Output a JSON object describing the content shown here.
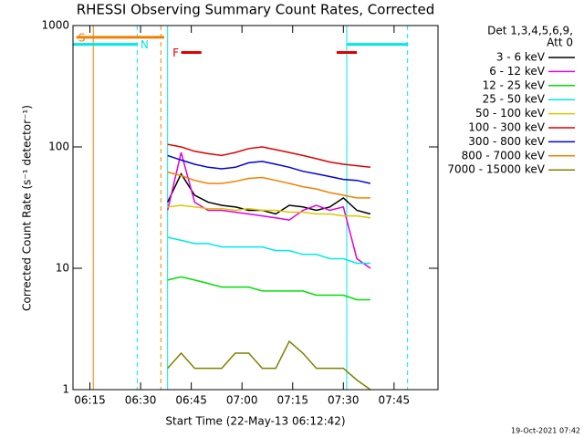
{
  "chart_data": {
    "type": "line",
    "title": "RHESSI Observing Summary Count Rates, Corrected",
    "x_label": "Start Time (22-May-13 06:12:42)",
    "y_label": "Corrected Count Rate (s⁻¹ detector⁻¹)",
    "footer": "19-Oct-2021 07:42",
    "legend_title": [
      "Det 1,3,4,5,6,9,",
      "Att 0"
    ],
    "log_y": true,
    "xlim": [
      "06:10",
      "07:58"
    ],
    "xticks": [
      "06:15",
      "06:30",
      "06:45",
      "07:00",
      "07:15",
      "07:30",
      "07:45"
    ],
    "ylim": [
      1,
      1000
    ],
    "yticks": [
      1,
      10,
      100,
      1000
    ],
    "x": [
      "06:38",
      "06:42",
      "06:46",
      "06:50",
      "06:54",
      "06:58",
      "07:02",
      "07:06",
      "07:10",
      "07:14",
      "07:18",
      "07:22",
      "07:26",
      "07:30",
      "07:34",
      "07:38"
    ],
    "series": [
      {
        "name": "3 - 6 keV",
        "color": "#000000",
        "values": [
          35,
          60,
          40,
          35,
          33,
          32,
          30,
          30,
          28,
          33,
          32,
          30,
          32,
          38,
          30,
          28
        ]
      },
      {
        "name": "6 - 12 keV",
        "color": "#e000e0",
        "values": [
          30,
          90,
          35,
          30,
          30,
          29,
          28,
          27,
          26,
          25,
          30,
          33,
          30,
          32,
          12,
          10
        ]
      },
      {
        "name": "12 - 25 keV",
        "color": "#00e000",
        "values": [
          8,
          8.5,
          8,
          7.5,
          7,
          7,
          7,
          6.5,
          6.5,
          6.5,
          6.5,
          6,
          6,
          6,
          5.5,
          5.5
        ]
      },
      {
        "name": "25 - 50 keV",
        "color": "#00e8e8",
        "values": [
          18,
          17,
          16,
          16,
          15,
          15,
          15,
          15,
          14,
          14,
          13,
          13,
          12,
          12,
          11,
          11
        ]
      },
      {
        "name": "50 - 100 keV",
        "color": "#d8c800",
        "values": [
          32,
          33,
          32,
          31,
          31,
          30,
          31,
          30,
          30,
          29,
          29,
          28,
          28,
          27,
          27,
          26
        ]
      },
      {
        "name": "100 - 300 keV",
        "color": "#e00000",
        "values": [
          105,
          100,
          92,
          88,
          85,
          90,
          97,
          100,
          95,
          90,
          85,
          80,
          75,
          72,
          70,
          68
        ]
      },
      {
        "name": "300 - 800 keV",
        "color": "#0000e0",
        "values": [
          85,
          78,
          72,
          68,
          66,
          68,
          74,
          76,
          72,
          68,
          63,
          60,
          57,
          54,
          53,
          50
        ]
      },
      {
        "name": "800 - 7000 keV",
        "color": "#f08000",
        "values": [
          62,
          58,
          53,
          50,
          50,
          52,
          55,
          56,
          53,
          50,
          47,
          45,
          42,
          40,
          38,
          38
        ]
      },
      {
        "name": "7000 - 15000 keV",
        "color": "#808000",
        "values": [
          1.5,
          2,
          1.5,
          1.5,
          1.5,
          2,
          2,
          1.5,
          1.5,
          2.5,
          2,
          1.5,
          1.5,
          1.5,
          1.2,
          1
        ]
      }
    ],
    "flags": [
      {
        "label": "S",
        "color": "#f08000",
        "level": 800,
        "label_side": "left",
        "segments": [
          [
            "06:11",
            "06:37"
          ]
        ]
      },
      {
        "label": "N",
        "color": "#00e8e8",
        "level": 700,
        "label_side": "right",
        "segments": [
          [
            "06:10",
            "06:29"
          ],
          [
            "07:31",
            "07:49"
          ]
        ]
      },
      {
        "label": "F",
        "color": "#e00000",
        "level": 600,
        "label_side": "left",
        "segments": [
          [
            "06:42",
            "06:48"
          ],
          [
            "07:28",
            "07:34"
          ]
        ]
      }
    ],
    "markers": [
      {
        "x": "06:16",
        "color": "#f08000",
        "dashed": false
      },
      {
        "x": "06:36",
        "color": "#f08000",
        "dashed": true
      },
      {
        "x": "06:29",
        "color": "#00e8e8",
        "dashed": true
      },
      {
        "x": "06:38",
        "color": "#00e8e8",
        "dashed": false
      },
      {
        "x": "07:31",
        "color": "#00e8e8",
        "dashed": false
      },
      {
        "x": "07:49",
        "color": "#00e8e8",
        "dashed": true
      }
    ]
  }
}
